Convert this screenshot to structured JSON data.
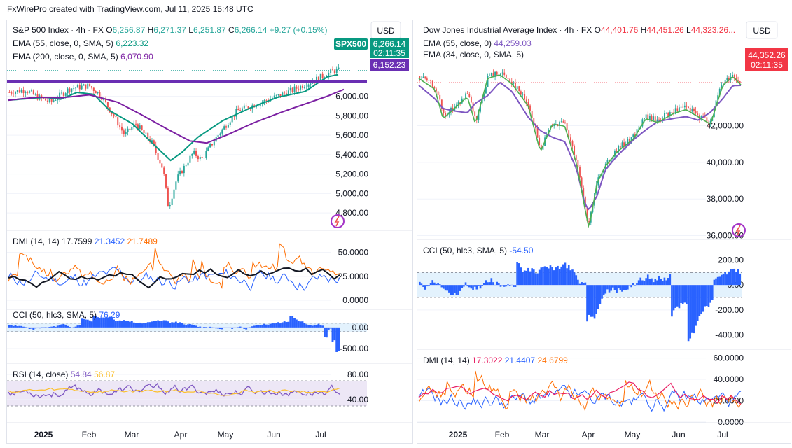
{
  "credit": "FxWirePro created with TradingView.com, Jul 11, 2025 15:48 UTC",
  "colors": {
    "grid": "#f0f3fa",
    "sep": "#e0e3eb",
    "text": "#131722",
    "axis": "#131722",
    "up": "#26a69a",
    "down": "#ef5350",
    "ema55": "#089981",
    "ema200": "#7b1fa2",
    "level": "#6a2fb3",
    "cci": "#2962ff",
    "cci_band": "#e3f2fd",
    "dmi_plus": "#2962ff",
    "dmi_minus": "#ff6d00",
    "adx_left": "#131722",
    "adx_right": "#e91e63",
    "rsi": "#7e57c2",
    "rsi_ma": "#fbc02d",
    "rsi_band": "#ede7f6",
    "dji_ema55": "#7e57c2",
    "dji_ema34": "#4caf50",
    "price_tag": "#f23645",
    "spx_tag": "#089981"
  },
  "chart_data": [
    {
      "id": "spx-price",
      "type": "candlestick",
      "title": "S&P 500 Index · 4h · FX",
      "ohlc_label": {
        "o": "O",
        "o_val": "6,256.87",
        "h": "H",
        "h_val": "6,271.37",
        "l": "L",
        "l_val": "6,251.87",
        "c": "C",
        "c_val": "6,266.14",
        "chg": "+9.27 (+0.15%)"
      },
      "currency": "USD",
      "indicators": [
        {
          "label": "EMA (55, close, 0, SMA, 5)",
          "value": "6,223.32"
        },
        {
          "label": "EMA (200, close, 0, SMA, 5)",
          "value": "6,070.90"
        }
      ],
      "symbol_tag": "SPX500",
      "last_price": "6,266.14",
      "countdown": "02:11:35",
      "level_label": "6,152.23",
      "y_ticks": [
        "6,000.00",
        "5,800.00",
        "5,600.00",
        "5,400.00",
        "5,200.00",
        "5,000.00",
        "4,800.00"
      ],
      "ylim": [
        4750,
        6350
      ],
      "key_points": [
        [
          0,
          6040
        ],
        [
          6,
          6065
        ],
        [
          10,
          5995
        ],
        [
          15,
          5940
        ],
        [
          22,
          6080
        ],
        [
          29,
          6110
        ],
        [
          33,
          6020
        ],
        [
          38,
          5800
        ],
        [
          42,
          5600
        ],
        [
          46,
          5720
        ],
        [
          52,
          5520
        ],
        [
          56,
          5250
        ],
        [
          58,
          4850
        ],
        [
          61,
          5150
        ],
        [
          67,
          5420
        ],
        [
          70,
          5350
        ],
        [
          76,
          5600
        ],
        [
          83,
          5850
        ],
        [
          93,
          5950
        ],
        [
          102,
          6050
        ],
        [
          110,
          6150
        ],
        [
          118,
          6260
        ],
        [
          120,
          6265
        ]
      ],
      "ema55_points": [
        [
          0,
          5960
        ],
        [
          13,
          5990
        ],
        [
          19,
          5970
        ],
        [
          25,
          6040
        ],
        [
          31,
          6020
        ],
        [
          37,
          5850
        ],
        [
          45,
          5720
        ],
        [
          53,
          5500
        ],
        [
          59,
          5340
        ],
        [
          63,
          5420
        ],
        [
          69,
          5580
        ],
        [
          78,
          5750
        ],
        [
          88,
          5880
        ],
        [
          98,
          5990
        ],
        [
          108,
          6050
        ],
        [
          116,
          6200
        ],
        [
          120,
          6223
        ]
      ],
      "ema200_points": [
        [
          0,
          5960
        ],
        [
          10,
          5990
        ],
        [
          19,
          5985
        ],
        [
          29,
          6015
        ],
        [
          39,
          5940
        ],
        [
          47,
          5820
        ],
        [
          57,
          5660
        ],
        [
          65,
          5540
        ],
        [
          71,
          5520
        ],
        [
          78,
          5600
        ],
        [
          88,
          5730
        ],
        [
          98,
          5840
        ],
        [
          108,
          5940
        ],
        [
          114,
          6000
        ],
        [
          120,
          6071
        ]
      ],
      "level": 6152.23,
      "x_ticks": [
        "2025",
        "Feb",
        "Mar",
        "Apr",
        "May",
        "Jun",
        "Jul"
      ]
    },
    {
      "id": "spx-dmi",
      "type": "line",
      "label": "DMI (14, 14)",
      "values": [
        {
          "name": "ADX",
          "value": "17.7599"
        },
        {
          "name": "+DI",
          "value": "21.3452"
        },
        {
          "name": "-DI",
          "value": "21.7489"
        }
      ],
      "y_ticks": [
        "50.0000",
        "25.0000",
        "0.0000"
      ],
      "ylim": [
        0,
        60
      ]
    },
    {
      "id": "spx-cci",
      "type": "bar",
      "label": "CCI (50, hlc3, SMA, 5)",
      "value": "76.29",
      "y_ticks": [
        "0.00",
        "-500.00"
      ],
      "ylim": [
        -650,
        280
      ]
    },
    {
      "id": "spx-rsi",
      "type": "line",
      "label": "RSI (14, close)",
      "values": [
        {
          "name": "RSI",
          "value": "54.84"
        },
        {
          "name": "MA",
          "value": "56.87"
        }
      ],
      "y_ticks": [
        "80.00",
        "40.00"
      ],
      "ylim": [
        20,
        90
      ],
      "band": [
        30,
        70
      ]
    },
    {
      "id": "dji-price",
      "type": "candlestick",
      "title": "Dow Jones Industrial Average Index · 4h · FX",
      "ohlc_label": {
        "o": "O",
        "o_val": "44,401.76",
        "h": "H",
        "h_val": "44,451.26",
        "l": "L",
        "l_val": "44,323.26..."
      },
      "currency": "USD",
      "indicators": [
        {
          "label": "EMA (55, close, 0)",
          "value": "44,259.03"
        },
        {
          "label": "EMA (34, close, 0, SMA, 5)",
          "value": ""
        }
      ],
      "last_price": "44,352.26",
      "countdown": "02:11:35",
      "y_ticks": [
        "42,000.00",
        "40,000.00",
        "38,000.00",
        "36,000.00"
      ],
      "ylim": [
        35600,
        46300
      ],
      "key_points": [
        [
          0,
          44700
        ],
        [
          8,
          44100
        ],
        [
          12,
          42500
        ],
        [
          18,
          43100
        ],
        [
          24,
          43700
        ],
        [
          28,
          42200
        ],
        [
          34,
          44700
        ],
        [
          40,
          44900
        ],
        [
          46,
          44400
        ],
        [
          54,
          43200
        ],
        [
          60,
          40700
        ],
        [
          66,
          42200
        ],
        [
          72,
          42100
        ],
        [
          78,
          40000
        ],
        [
          82,
          37600
        ],
        [
          84,
          36500
        ],
        [
          88,
          39000
        ],
        [
          92,
          39900
        ],
        [
          98,
          40700
        ],
        [
          106,
          41400
        ],
        [
          112,
          42500
        ],
        [
          118,
          42300
        ],
        [
          126,
          42800
        ],
        [
          132,
          43000
        ],
        [
          138,
          42600
        ],
        [
          144,
          42200
        ],
        [
          150,
          44300
        ],
        [
          155,
          44800
        ],
        [
          159,
          44350
        ]
      ],
      "x_ticks": [
        "2025",
        "Feb",
        "Mar",
        "Apr",
        "May",
        "Jun",
        "Jul"
      ]
    },
    {
      "id": "dji-cci",
      "type": "bar",
      "label": "CCI (50, hlc3, SMA, 5)",
      "value": "-54.50",
      "y_ticks": [
        "200.00",
        "0.00",
        "-200.00",
        "-400.00"
      ],
      "ylim": [
        -470,
        270
      ]
    },
    {
      "id": "dji-dmi",
      "type": "line",
      "label": "DMI (14, 14)",
      "values": [
        {
          "name": "ADX",
          "value": "17.3022"
        },
        {
          "name": "+DI",
          "value": "21.4407"
        },
        {
          "name": "-DI",
          "value": "24.6799"
        }
      ],
      "y_ticks": [
        "60.0000",
        "40.0000",
        "20.0000",
        "0.0000"
      ],
      "ylim": [
        0,
        63
      ]
    }
  ]
}
